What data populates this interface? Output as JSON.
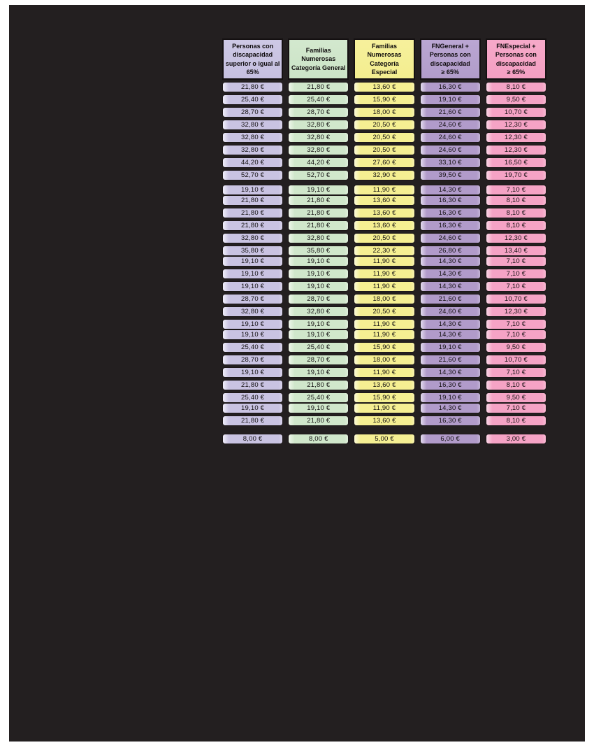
{
  "page": {
    "background_color": "#ffffff",
    "canvas_color": "#231f20"
  },
  "table": {
    "columns": [
      {
        "key": "discapacidad-65",
        "label": "Personas con\ndiscapacidad\nsuperior o igual al\n65%",
        "color": "#c9c3e2"
      },
      {
        "key": "fn-categoria-general",
        "label": "Familias\nNumerosas\nCategoría General",
        "color": "#d0e7cb"
      },
      {
        "key": "fn-categoria-especial",
        "label": "Familias\nNumerosas\nCategoría\nEspecial",
        "color": "#f5ef92"
      },
      {
        "key": "fngeneral-discapacidad",
        "label": "FNGeneral +\nPersonas con\ndiscapacidad\n≥ 65%",
        "color": "#b19bca"
      },
      {
        "key": "fnespecial-discapacidad",
        "label": "FNEspecial +\nPersonas con\ndiscapacidad\n≥ 65%",
        "color": "#f5a3c5"
      }
    ],
    "rows": [
      {
        "gap": "normal",
        "values": [
          "21,80 €",
          "21,80 €",
          "13,60 €",
          "16,30 €",
          "8,10 €"
        ]
      },
      {
        "gap": "normal",
        "values": [
          "25,40 €",
          "25,40 €",
          "15,90 €",
          "19,10 €",
          "9,50 €"
        ]
      },
      {
        "gap": "normal",
        "values": [
          "28,70 €",
          "28,70 €",
          "18,00 €",
          "21,60 €",
          "10,70 €"
        ]
      },
      {
        "gap": "normal",
        "values": [
          "32,80 €",
          "32,80 €",
          "20,50 €",
          "24,60 €",
          "12,30 €"
        ]
      },
      {
        "gap": "normal",
        "values": [
          "32,80 €",
          "32,80 €",
          "20,50 €",
          "24,60 €",
          "12,30 €"
        ]
      },
      {
        "gap": "normal",
        "values": [
          "32,80 €",
          "32,80 €",
          "20,50 €",
          "24,60 €",
          "12,30 €"
        ]
      },
      {
        "gap": "normal",
        "values": [
          "44,20 €",
          "44,20 €",
          "27,60 €",
          "33,10 €",
          "16,50 €"
        ]
      },
      {
        "gap": "normal",
        "values": [
          "52,70 €",
          "52,70 €",
          "32,90 €",
          "39,50 €",
          "19,70 €"
        ]
      },
      {
        "gap": "wide",
        "values": [
          "19,10 €",
          "19,10 €",
          "11,90 €",
          "14,30 €",
          "7,10 €"
        ]
      },
      {
        "gap": "tight",
        "values": [
          "21,80 €",
          "21,80 €",
          "13,60 €",
          "16,30 €",
          "8,10 €"
        ]
      },
      {
        "gap": "normal",
        "values": [
          "21,80 €",
          "21,80 €",
          "13,60 €",
          "16,30 €",
          "8,10 €"
        ]
      },
      {
        "gap": "normal",
        "values": [
          "21,80 €",
          "21,80 €",
          "13,60 €",
          "16,30 €",
          "8,10 €"
        ]
      },
      {
        "gap": "normal",
        "values": [
          "32,80 €",
          "32,80 €",
          "20,50 €",
          "24,60 €",
          "12,30 €"
        ]
      },
      {
        "gap": "normal",
        "values": [
          "35,80 €",
          "35,80 €",
          "22,30 €",
          "26,80 €",
          "13,40 €"
        ]
      },
      {
        "gap": "tight",
        "values": [
          "19,10 €",
          "19,10 €",
          "11,90 €",
          "14,30 €",
          "7,10 €"
        ]
      },
      {
        "gap": "normal",
        "values": [
          "19,10 €",
          "19,10 €",
          "11,90 €",
          "14,30 €",
          "7,10 €"
        ]
      },
      {
        "gap": "normal",
        "values": [
          "19,10 €",
          "19,10 €",
          "11,90 €",
          "14,30 €",
          "7,10 €"
        ]
      },
      {
        "gap": "normal",
        "values": [
          "28,70 €",
          "28,70 €",
          "18,00 €",
          "21,60 €",
          "10,70 €"
        ]
      },
      {
        "gap": "normal",
        "values": [
          "32,80 €",
          "32,80 €",
          "20,50 €",
          "24,60 €",
          "12,30 €"
        ]
      },
      {
        "gap": "normal",
        "values": [
          "19,10 €",
          "19,10 €",
          "11,90 €",
          "14,30 €",
          "7,10 €"
        ]
      },
      {
        "gap": "tight",
        "values": [
          "19,10 €",
          "19,10 €",
          "11,90 €",
          "14,30 €",
          "7,10 €"
        ]
      },
      {
        "gap": "normal",
        "values": [
          "25,40 €",
          "25,40 €",
          "15,90 €",
          "19,10 €",
          "9,50 €"
        ]
      },
      {
        "gap": "normal",
        "values": [
          "28,70 €",
          "28,70 €",
          "18,00 €",
          "21,60 €",
          "10,70 €"
        ]
      },
      {
        "gap": "normal",
        "values": [
          "19,10 €",
          "19,10 €",
          "11,90 €",
          "14,30 €",
          "7,10 €"
        ]
      },
      {
        "gap": "normal",
        "values": [
          "21,80 €",
          "21,80 €",
          "13,60 €",
          "16,30 €",
          "8,10 €"
        ]
      },
      {
        "gap": "normal",
        "values": [
          "25,40 €",
          "25,40 €",
          "15,90 €",
          "19,10 €",
          "9,50 €"
        ]
      },
      {
        "gap": "tight",
        "values": [
          "19,10 €",
          "19,10 €",
          "11,90 €",
          "14,30 €",
          "7,10 €"
        ]
      },
      {
        "gap": "normal",
        "values": [
          "21,80 €",
          "21,80 €",
          "13,60 €",
          "16,30 €",
          "8,10 €"
        ]
      }
    ],
    "footer": {
      "values": [
        "8,00 €",
        "8,00 €",
        "5,00 €",
        "6,00 €",
        "3,00 €"
      ]
    }
  }
}
